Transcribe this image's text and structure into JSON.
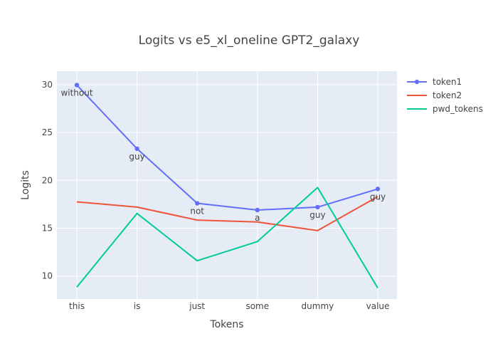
{
  "chart_data": {
    "type": "line",
    "title": "Logits vs e5_xl_oneline GPT2_galaxy",
    "xlabel": "Tokens",
    "ylabel": "Logits",
    "categories": [
      "this",
      "is",
      "just",
      "some",
      "dummy",
      "value"
    ],
    "ylim": [
      7.6,
      31.4
    ],
    "yticks": [
      10,
      15,
      20,
      25,
      30
    ],
    "grid": true,
    "legend_position": "top-right",
    "series": [
      {
        "name": "token1",
        "values": [
          29.95,
          23.3,
          17.6,
          16.9,
          17.2,
          19.1
        ],
        "labels": [
          "without",
          "guy",
          "not",
          "a",
          "guy",
          "guy"
        ],
        "color": "#636efa",
        "markers": true
      },
      {
        "name": "token2",
        "values": [
          17.75,
          17.2,
          15.85,
          15.65,
          14.75,
          18.3
        ],
        "color": "#ef553b",
        "markers": false
      },
      {
        "name": "pwd_tokens",
        "values": [
          8.85,
          16.55,
          11.6,
          13.6,
          19.25,
          8.75
        ],
        "color": "#00cc96",
        "markers": false
      }
    ]
  }
}
